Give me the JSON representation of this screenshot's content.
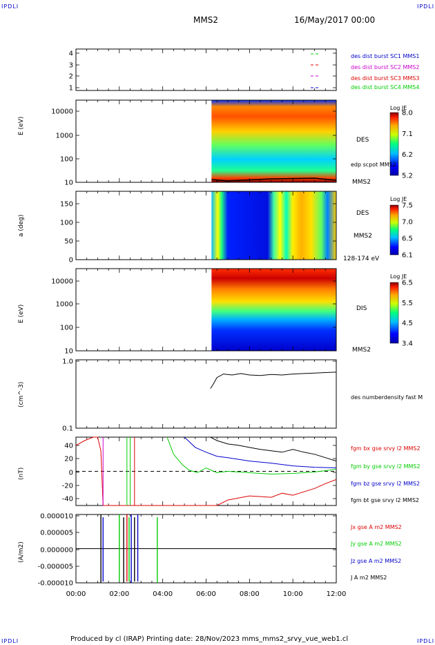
{
  "page": {
    "corner_tl": "IPDLI",
    "corner_tr": "IPDLI",
    "corner_bl": "IPDLI",
    "corner_br": "IPDLI",
    "title": "MMS2",
    "datetime": "16/May/2017 00:00",
    "footer": "Produced by cl (IRAP)   Printing date: 28/Nov/2023   mms_mms2_srvy_vue_web1.cl"
  },
  "colors": {
    "c_black": "#000000",
    "c_red": "#dd0000",
    "c_green": "#00cc00",
    "c_blue": "#0000cc",
    "c_magenta": "#cc00cc"
  },
  "chart_data": [
    {
      "type": "line",
      "panel": "burst-availability",
      "y_ticks": [
        "4",
        "3",
        "2",
        "1"
      ],
      "series": [
        {
          "name": "des dist burst SC1 MMS1",
          "color": "#0000cc"
        },
        {
          "name": "des dist burst SC2 MMS2",
          "color": "#cc00cc"
        },
        {
          "name": "des dist burst SC3 MMS3",
          "color": "#dd0000"
        },
        {
          "name": "des dist burst SC4 MMS4",
          "color": "#00cc00"
        }
      ]
    },
    {
      "type": "heatmap",
      "panel": "des-energy-spectrogram",
      "ylabel": "E (eV)",
      "y_ticks": [
        "10000",
        "1000",
        "100",
        "10"
      ],
      "label": "DES",
      "overlay": "edp scpot MMS2",
      "instrument": "MMS2",
      "colorbar": {
        "title": "Log JE",
        "ticks": [
          "8.0",
          "7.1",
          "6.2",
          "5.2"
        ]
      }
    },
    {
      "type": "heatmap",
      "panel": "des-pitch-angle",
      "ylabel": "a (deg)",
      "y_ticks": [
        "150",
        "100",
        "50",
        "0"
      ],
      "label": "DES",
      "instrument": "MMS2",
      "energy_range": "128-174 eV",
      "colorbar": {
        "title": "Log JE",
        "ticks": [
          "7.5",
          "7.0",
          "6.5",
          "6.1"
        ]
      }
    },
    {
      "type": "heatmap",
      "panel": "dis-energy-spectrogram",
      "ylabel": "E (eV)",
      "y_ticks": [
        "10000",
        "1000",
        "100",
        "10"
      ],
      "label": "DIS",
      "instrument": "MMS2",
      "colorbar": {
        "title": "Log JE",
        "ticks": [
          "6.5",
          "5.5",
          "4.5",
          "3.4"
        ]
      }
    },
    {
      "type": "line",
      "panel": "density",
      "ylabel": "(cm^-3)",
      "y_ticks": [
        "1.0",
        "0.1"
      ],
      "ylim": [
        0.1,
        1.0
      ],
      "log_y": true,
      "series": [
        {
          "name": "des numberdensity fast M",
          "color": "#000000",
          "x_hours": [
            6.2,
            6.35,
            6.5,
            6.8,
            7.2,
            7.6,
            8.0,
            8.5,
            9.0,
            9.5,
            10.0,
            10.5,
            11.0,
            11.5,
            12.0
          ],
          "y": [
            0.38,
            0.45,
            0.55,
            0.62,
            0.6,
            0.63,
            0.6,
            0.59,
            0.61,
            0.6,
            0.62,
            0.63,
            0.64,
            0.65,
            0.66
          ]
        }
      ]
    },
    {
      "type": "line",
      "panel": "magnetic-field",
      "ylabel": "(nT)",
      "y_ticks": [
        "40",
        "20",
        "0",
        "-20",
        "-40"
      ],
      "ylim": [
        -50,
        50
      ],
      "series": [
        {
          "name": "fgm bx gse srvy l2 MMS2",
          "color": "#dd0000",
          "x_hours": [
            0.0,
            0.4,
            0.8,
            1.0,
            1.15,
            1.25,
            6.5,
            7.0,
            8.0,
            9.0,
            9.5,
            10.0,
            10.5,
            11.0,
            11.5,
            12.0
          ],
          "y": [
            38,
            45,
            50,
            50,
            30,
            -50,
            -50,
            -42,
            -36,
            -38,
            -32,
            -35,
            -30,
            -25,
            -18,
            -12
          ]
        },
        {
          "name": "fgm by gse srvy l2 MMS2",
          "color": "#00cc00",
          "x_hours": [
            4.2,
            4.5,
            4.9,
            5.2,
            5.6,
            6.0,
            6.5,
            7.0,
            8.0,
            9.0,
            10.0,
            11.0,
            12.0
          ],
          "y": [
            50,
            25,
            10,
            2,
            -2,
            5,
            -2,
            0,
            -2,
            -4,
            -3,
            -1,
            3
          ]
        },
        {
          "name": "fgm bz gse srvy l2 MMS2",
          "color": "#0000cc",
          "x_hours": [
            5.0,
            5.5,
            6.0,
            6.5,
            7.0,
            8.0,
            9.0,
            10.0,
            11.0,
            12.0
          ],
          "y": [
            50,
            35,
            28,
            22,
            20,
            15,
            12,
            8,
            6,
            5
          ]
        },
        {
          "name": "fgm bt gse srvy l2 MMS2",
          "color": "#000000",
          "x_hours": [
            6.2,
            6.5,
            7.0,
            7.5,
            8.0,
            8.5,
            9.0,
            9.5,
            10.0,
            10.5,
            11.0,
            11.5,
            12.0
          ],
          "y": [
            50,
            45,
            40,
            38,
            35,
            32,
            30,
            28,
            32,
            28,
            25,
            20,
            15
          ]
        }
      ]
    },
    {
      "type": "line",
      "panel": "current-density",
      "ylabel": "(A/m2)",
      "y_ticks": [
        "0.000010",
        "0.000005",
        "0.000000",
        "-0.000005",
        "-0.000010"
      ],
      "ylim": [
        -1e-05,
        1e-05
      ],
      "series": [
        {
          "name": "Jx gse A m2 MMS2",
          "color": "#dd0000"
        },
        {
          "name": "Jy gse A m2 MMS2",
          "color": "#00cc00"
        },
        {
          "name": "Jz gse A m2 MMS2",
          "color": "#0000cc"
        },
        {
          "name": "J A m2 MMS2",
          "color": "#000000"
        }
      ]
    }
  ],
  "x_axis": {
    "ticks": [
      "00:00",
      "02:00",
      "04:00",
      "06:00",
      "08:00",
      "10:00",
      "12:00"
    ],
    "range_hours": [
      0,
      12
    ]
  }
}
